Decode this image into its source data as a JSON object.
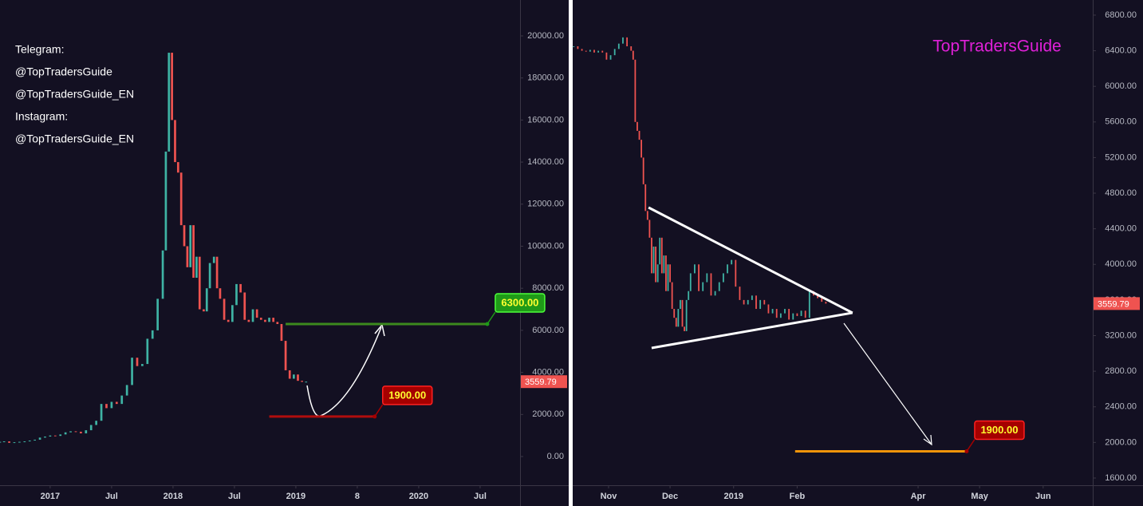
{
  "chart_data": [
    {
      "type": "candlestick",
      "notes": [
        "Telegram:",
        "@TopTradersGuide",
        "@TopTradersGuide_EN",
        "Instagram:",
        "@TopTradersGuide_EN"
      ],
      "x": [
        -4.9,
        -4.5,
        -4,
        -3.5,
        -3,
        -2.5,
        -2,
        -1.5,
        -1,
        -0.5,
        0,
        0.5,
        1,
        1.5,
        2,
        2.5,
        3,
        3.5,
        4,
        4.5,
        5,
        5.5,
        6,
        6.5,
        7,
        7.5,
        8,
        8.5,
        9,
        9.5,
        10,
        10.5,
        11,
        11.3,
        11.6,
        11.9,
        12.2,
        12.5,
        12.8,
        13.1,
        13.4,
        13.7,
        14,
        14.3,
        14.6,
        15,
        15.3,
        15.6,
        16,
        16.3,
        16.6,
        17,
        17.4,
        17.8,
        18.2,
        18.6,
        19,
        19.4,
        19.8,
        20.2,
        20.6,
        21,
        21.4,
        21.8,
        22.2,
        22.6,
        23,
        23.4,
        23.8,
        24.2,
        24.6,
        25
      ],
      "values": [
        700,
        720,
        650,
        680,
        700,
        720,
        760,
        800,
        900,
        950,
        1000,
        980,
        1050,
        1150,
        1200,
        1180,
        1100,
        1250,
        1500,
        1700,
        2500,
        2300,
        2600,
        2500,
        2900,
        3400,
        4700,
        4300,
        4400,
        5600,
        6000,
        7500,
        9800,
        14500,
        19200,
        16000,
        14000,
        13500,
        11000,
        10000,
        9000,
        11000,
        8500,
        9500,
        7000,
        6900,
        8000,
        9200,
        9500,
        8000,
        7500,
        6500,
        6400,
        7200,
        8200,
        7800,
        6500,
        6400,
        7000,
        6600,
        6500,
        6400,
        6600,
        6400,
        6300,
        5500,
        4100,
        3700,
        3900,
        3600,
        3550,
        3559.79
      ],
      "up_color": "#3fb3a4",
      "down_color": "#ef5350",
      "xlim": [
        -4.9,
        45.9
      ],
      "xticks": [
        {
          "value": 0,
          "label": "2017"
        },
        {
          "value": 6,
          "label": "Jul"
        },
        {
          "value": 12,
          "label": "2018"
        },
        {
          "value": 18,
          "label": "Jul"
        },
        {
          "value": 24,
          "label": "2019"
        },
        {
          "value": 30,
          "label": "8"
        },
        {
          "value": 36,
          "label": "2020"
        },
        {
          "value": 42,
          "label": "Jul"
        }
      ],
      "ylim": [
        -1366,
        21707
      ],
      "yticks": [
        {
          "value": 0,
          "label": "0.00"
        },
        {
          "value": 2000,
          "label": "2000.00"
        },
        {
          "value": 4000,
          "label": "4000.00"
        },
        {
          "value": 6000,
          "label": "6000.00"
        },
        {
          "value": 8000,
          "label": "8000.00"
        },
        {
          "value": 10000,
          "label": "10000.00"
        },
        {
          "value": 12000,
          "label": "12000.00"
        },
        {
          "value": 14000,
          "label": "14000.00"
        },
        {
          "value": 16000,
          "label": "16000.00"
        },
        {
          "value": 18000,
          "label": "18000.00"
        },
        {
          "value": 20000,
          "label": "20000.00"
        }
      ],
      "levels": [
        {
          "value": 6300,
          "value_label": "6300.00",
          "x_range": [
            23,
            42.7
          ],
          "color": "#3c8a1e",
          "box_color": "#1f9a18"
        },
        {
          "value": 1900,
          "value_label": "1900.00",
          "x_range": [
            21.4,
            31.7
          ],
          "color": "#b00d0d",
          "box_color": "#a50000"
        }
      ],
      "grid": false
    },
    {
      "type": "candlestick",
      "watermark": "TopTradersGuide",
      "x": [
        -17,
        -15,
        -13,
        -11,
        -9,
        -7,
        -5,
        -3,
        -1,
        1,
        3,
        5,
        7,
        9,
        11,
        12,
        13,
        14,
        15,
        16,
        17,
        18,
        19,
        20,
        21,
        22,
        23,
        24,
        25,
        26,
        27,
        28,
        29,
        30,
        31,
        32,
        33,
        34,
        35,
        36,
        37,
        38,
        39,
        40,
        42,
        44,
        46,
        48,
        50,
        52,
        54,
        56,
        58,
        60,
        62,
        64,
        66,
        68,
        70,
        72,
        74,
        76,
        78,
        80,
        82,
        84,
        86,
        88,
        90,
        92,
        94,
        96,
        98,
        100,
        102,
        104,
        106
      ],
      "values": [
        6450,
        6420,
        6400,
        6390,
        6410,
        6380,
        6400,
        6380,
        6300,
        6350,
        6420,
        6480,
        6550,
        6450,
        6400,
        6300,
        5600,
        5500,
        5400,
        5200,
        4900,
        4600,
        4500,
        4300,
        3900,
        4200,
        3800,
        4000,
        4300,
        3900,
        4100,
        3700,
        4000,
        3800,
        3500,
        3400,
        3300,
        3500,
        3600,
        3300,
        3250,
        3600,
        3700,
        3900,
        4000,
        3700,
        3800,
        3900,
        3650,
        3700,
        3800,
        3900,
        4000,
        4050,
        3750,
        3600,
        3550,
        3600,
        3650,
        3500,
        3600,
        3550,
        3450,
        3500,
        3400,
        3450,
        3500,
        3380,
        3450,
        3420,
        3480,
        3400,
        3700,
        3650,
        3620,
        3580,
        3559.79
      ],
      "up_color": "#3fb3a4",
      "down_color": "#ef5350",
      "xlim": [
        -17.5,
        236.2
      ],
      "xticks": [
        {
          "value": 0,
          "label": "Nov"
        },
        {
          "value": 30,
          "label": "Dec"
        },
        {
          "value": 61,
          "label": "2019"
        },
        {
          "value": 92,
          "label": "Feb"
        },
        {
          "value": 151,
          "label": "Apr"
        },
        {
          "value": 181,
          "label": "May"
        },
        {
          "value": 212,
          "label": "Jun"
        }
      ],
      "ylim": [
        1519,
        6970
      ],
      "yticks": [
        {
          "value": 1600,
          "label": "1600.00"
        },
        {
          "value": 2000,
          "label": "2000.00"
        },
        {
          "value": 2400,
          "label": "2400.00"
        },
        {
          "value": 2800,
          "label": "2800.00"
        },
        {
          "value": 3200,
          "label": "3200.00"
        },
        {
          "value": 3600,
          "label": "3600.00"
        },
        {
          "value": 4000,
          "label": "4000.00"
        },
        {
          "value": 4400,
          "label": "4400.00"
        },
        {
          "value": 4800,
          "label": "4800.00"
        },
        {
          "value": 5200,
          "label": "5200.00"
        },
        {
          "value": 5600,
          "label": "5600.00"
        },
        {
          "value": 6000,
          "label": "6000.00"
        },
        {
          "value": 6400,
          "label": "6400.00"
        },
        {
          "value": 6800,
          "label": "6800.00"
        }
      ],
      "trendlines": [
        {
          "x": [
            19.5,
            119
          ],
          "y": [
            4639,
            3456
          ],
          "color": "#ffffff"
        },
        {
          "x": [
            21,
            119
          ],
          "y": [
            3061,
            3456
          ],
          "color": "#ffffff"
        }
      ],
      "levels": [
        {
          "value": 1900,
          "value_label": "1900.00",
          "x_range": [
            91,
            174.7
          ],
          "color": "#f0940a",
          "box_color": "#a50000"
        }
      ],
      "grid": false
    }
  ]
}
